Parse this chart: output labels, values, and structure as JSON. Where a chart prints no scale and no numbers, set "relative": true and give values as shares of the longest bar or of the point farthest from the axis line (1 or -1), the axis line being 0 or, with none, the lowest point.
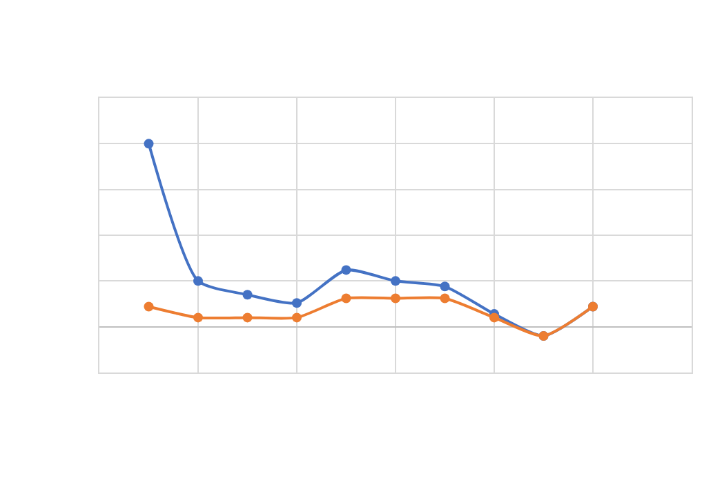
{
  "chart_data": {
    "type": "line",
    "relative": true,
    "categories": [
      null,
      null,
      null,
      null,
      null,
      null,
      null,
      null,
      null,
      null
    ],
    "series": [
      {
        "color": "#4472c4",
        "values": [
          1,
          0.25,
          0.175,
          0.13,
          0.31,
          0.25,
          0.22,
          0.07,
          -0.05,
          0.11
        ]
      },
      {
        "color": "#ed7d31",
        "values": [
          0.11,
          0.05,
          0.05,
          0.05,
          0.155,
          0.155,
          0.155,
          0.05,
          -0.05,
          0.11
        ]
      }
    ],
    "marker": "circle",
    "line_style": "solid",
    "grid": true
  }
}
